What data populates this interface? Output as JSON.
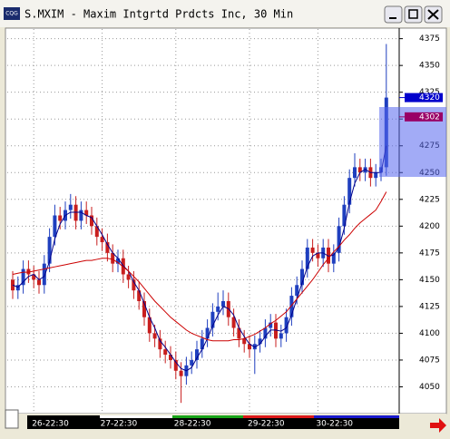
{
  "icon_text": "CQG",
  "chart_data": {
    "type": "candlestick",
    "title": "S.MXIM - Maxim Intgrtd Prdcts Inc, 30 Min",
    "categories": [
      null,
      null,
      null,
      null,
      "26-22:30",
      null,
      null,
      null,
      null,
      null,
      null,
      null,
      null,
      null,
      null,
      null,
      null,
      "27-22:30",
      null,
      null,
      null,
      null,
      null,
      null,
      null,
      null,
      null,
      null,
      null,
      null,
      null,
      "28-22:30",
      null,
      null,
      null,
      null,
      null,
      null,
      null,
      null,
      null,
      null,
      null,
      null,
      null,
      "29-22:30",
      null,
      null,
      null,
      null,
      null,
      null,
      null,
      null,
      null,
      null,
      null,
      null,
      "30-22:30",
      null,
      null,
      null,
      null,
      null,
      null,
      null,
      null,
      null,
      null,
      null,
      null,
      null
    ],
    "open": [
      4150,
      4140,
      4145,
      4160,
      4155,
      4150,
      4145,
      4165,
      4190,
      4210,
      4205,
      4215,
      4220,
      4205,
      4215,
      4210,
      4200,
      4190,
      4185,
      4175,
      4165,
      4170,
      4155,
      4150,
      4140,
      4130,
      4115,
      4100,
      4095,
      4085,
      4080,
      4075,
      4065,
      4060,
      4070,
      4075,
      4085,
      4095,
      4105,
      4120,
      4125,
      4130,
      4115,
      4105,
      4095,
      4090,
      4085,
      4090,
      4095,
      4105,
      4110,
      4095,
      4100,
      4115,
      4135,
      4145,
      4160,
      4180,
      4175,
      4170,
      4180,
      4165,
      4175,
      4200,
      4220,
      4245,
      4255,
      4250,
      4255,
      4245,
      4250,
      4255
    ],
    "high": [
      4158,
      4153,
      4168,
      4168,
      4163,
      4158,
      4173,
      4198,
      4220,
      4218,
      4223,
      4230,
      4228,
      4223,
      4223,
      4218,
      4208,
      4198,
      4193,
      4183,
      4178,
      4178,
      4163,
      4158,
      4148,
      4138,
      4123,
      4108,
      4103,
      4093,
      4088,
      4083,
      4073,
      4078,
      4083,
      4093,
      4103,
      4113,
      4128,
      4138,
      4140,
      4138,
      4123,
      4113,
      4103,
      4098,
      4098,
      4103,
      4113,
      4118,
      4118,
      4108,
      4123,
      4143,
      4153,
      4168,
      4188,
      4188,
      4183,
      4188,
      4188,
      4183,
      4208,
      4228,
      4253,
      4268,
      4263,
      4263,
      4263,
      4258,
      4263,
      4370
    ],
    "low": [
      4132,
      4132,
      4137,
      4147,
      4142,
      4137,
      4137,
      4157,
      4182,
      4197,
      4197,
      4207,
      4197,
      4197,
      4202,
      4192,
      4182,
      4177,
      4167,
      4157,
      4157,
      4147,
      4142,
      4132,
      4122,
      4107,
      4092,
      4087,
      4077,
      4072,
      4067,
      4057,
      4035,
      4052,
      4062,
      4067,
      4077,
      4087,
      4097,
      4112,
      4117,
      4107,
      4097,
      4087,
      4082,
      4077,
      4062,
      4082,
      4087,
      4097,
      4087,
      4087,
      4092,
      4107,
      4127,
      4137,
      4152,
      4167,
      4162,
      4162,
      4157,
      4157,
      4167,
      4192,
      4212,
      4237,
      4242,
      4242,
      4237,
      4237,
      4242,
      4247
    ],
    "close": [
      4140,
      4145,
      4160,
      4155,
      4150,
      4145,
      4165,
      4190,
      4210,
      4205,
      4215,
      4220,
      4205,
      4215,
      4210,
      4200,
      4190,
      4185,
      4175,
      4165,
      4170,
      4155,
      4150,
      4140,
      4130,
      4115,
      4100,
      4095,
      4085,
      4080,
      4075,
      4065,
      4060,
      4070,
      4075,
      4085,
      4095,
      4105,
      4120,
      4125,
      4130,
      4115,
      4105,
      4095,
      4090,
      4085,
      4090,
      4095,
      4105,
      4110,
      4095,
      4100,
      4115,
      4135,
      4145,
      4160,
      4180,
      4175,
      4170,
      4180,
      4165,
      4175,
      4200,
      4220,
      4245,
      4255,
      4250,
      4255,
      4245,
      4250,
      4255,
      4320
    ],
    "up_color": "#1f3fbf",
    "down_color": "#c81e1e",
    "overlays": [
      {
        "color": "#00008b",
        "values": [
          4145,
          4143,
          4148,
          4153,
          4155,
          4150,
          4153,
          4167,
          4188,
          4202,
          4210,
          4213,
          4213,
          4213,
          4210,
          4208,
          4200,
          4192,
          4183,
          4175,
          4170,
          4163,
          4158,
          4148,
          4140,
          4128,
          4115,
          4105,
          4093,
          4087,
          4080,
          4073,
          4067,
          4065,
          4068,
          4077,
          4085,
          4095,
          4107,
          4117,
          4125,
          4123,
          4117,
          4105,
          4097,
          4090,
          4087,
          4090,
          4097,
          4103,
          4103,
          4102,
          4105,
          4117,
          4132,
          4147,
          4162,
          4172,
          4175,
          4175,
          4172,
          4173,
          4180,
          4198,
          4222,
          4240,
          4250,
          4253,
          4250,
          4250,
          4250,
          4275
        ]
      },
      {
        "color": "#cc0000",
        "values": [
          4155,
          4156,
          4157,
          4157,
          4158,
          4159,
          4160,
          4161,
          4162,
          4163,
          4164,
          4165,
          4166,
          4167,
          4168,
          4168,
          4169,
          4170,
          4170,
          4169,
          4166,
          4162,
          4158,
          4153,
          4148,
          4142,
          4136,
          4130,
          4125,
          4120,
          4115,
          4111,
          4107,
          4103,
          4100,
          4098,
          4096,
          4094,
          4093,
          4093,
          4093,
          4093,
          4094,
          4094,
          4095,
          4097,
          4099,
          4102,
          4105,
          4109,
          4112,
          4116,
          4120,
          4126,
          4132,
          4138,
          4144,
          4150,
          4157,
          4164,
          4170,
          4176,
          4181,
          4187,
          4192,
          4198,
          4203,
          4207,
          4211,
          4215,
          4223,
          4232
        ]
      }
    ],
    "ylim": [
      4025,
      4384
    ],
    "yticks": [
      4050,
      4075,
      4100,
      4125,
      4150,
      4175,
      4200,
      4225,
      4250,
      4275,
      4300,
      4325,
      4350,
      4375
    ],
    "grid": true,
    "price_markers": [
      {
        "value": 4320,
        "color": "#0000cc"
      },
      {
        "value": 4302,
        "color": "#990066"
      }
    ]
  }
}
